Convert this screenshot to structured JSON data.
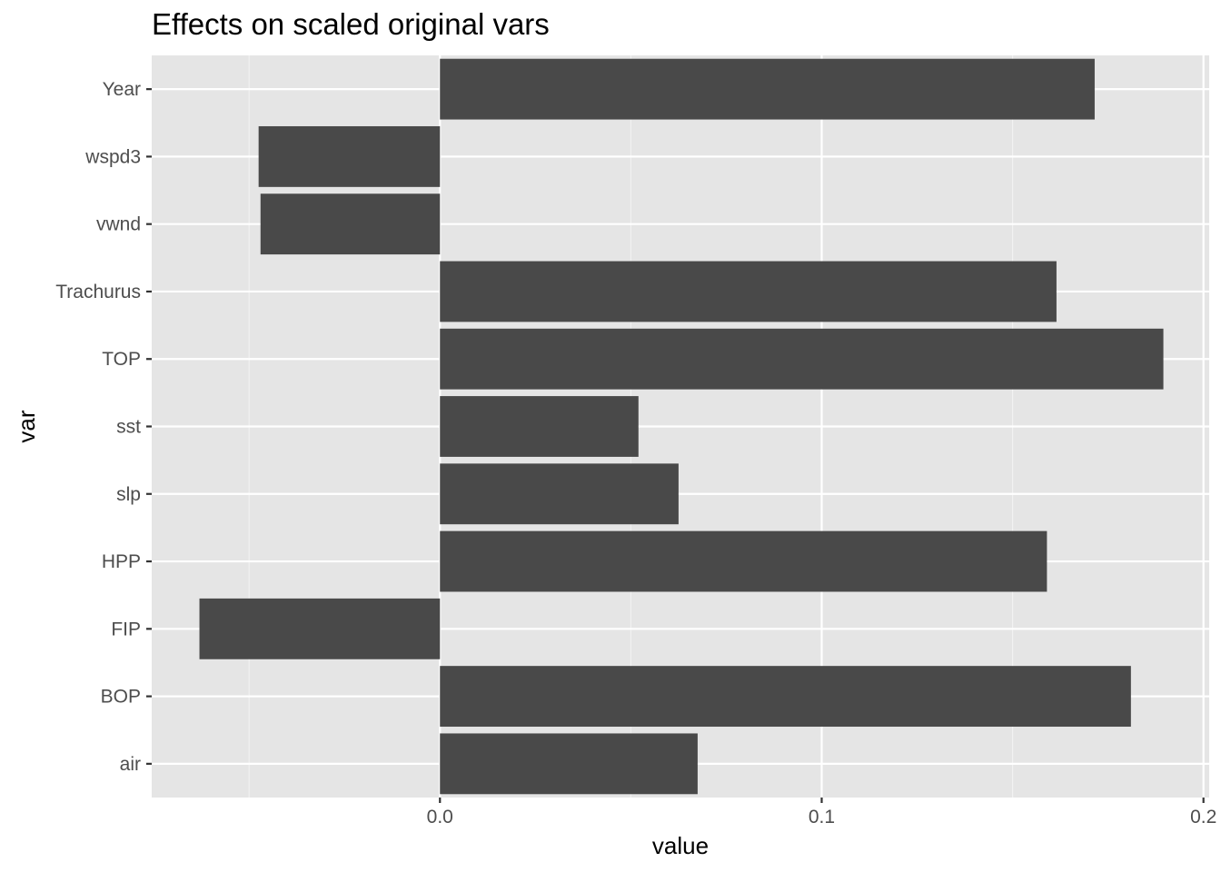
{
  "chart_data": {
    "type": "bar",
    "orientation": "horizontal",
    "title": "Effects on scaled original vars",
    "xlabel": "value",
    "ylabel": "var",
    "categories": [
      "air",
      "BOP",
      "FIP",
      "HPP",
      "slp",
      "sst",
      "TOP",
      "Trachurus",
      "vwnd",
      "wspd3",
      "Year"
    ],
    "values": [
      0.0675,
      0.181,
      -0.063,
      0.159,
      0.0625,
      0.052,
      0.1895,
      0.1615,
      -0.047,
      -0.0475,
      0.1715
    ],
    "xlim": [
      -0.0755,
      0.2015
    ],
    "x_ticks": [
      0.0,
      0.1,
      0.2
    ],
    "x_tick_labels": [
      "0.0",
      "0.1",
      "0.2"
    ],
    "grid": true,
    "colors": {
      "bar": "#494949",
      "panel": "#e5e5e5",
      "grid_major": "#ffffff",
      "grid_minor": "#f2f2f2"
    }
  }
}
